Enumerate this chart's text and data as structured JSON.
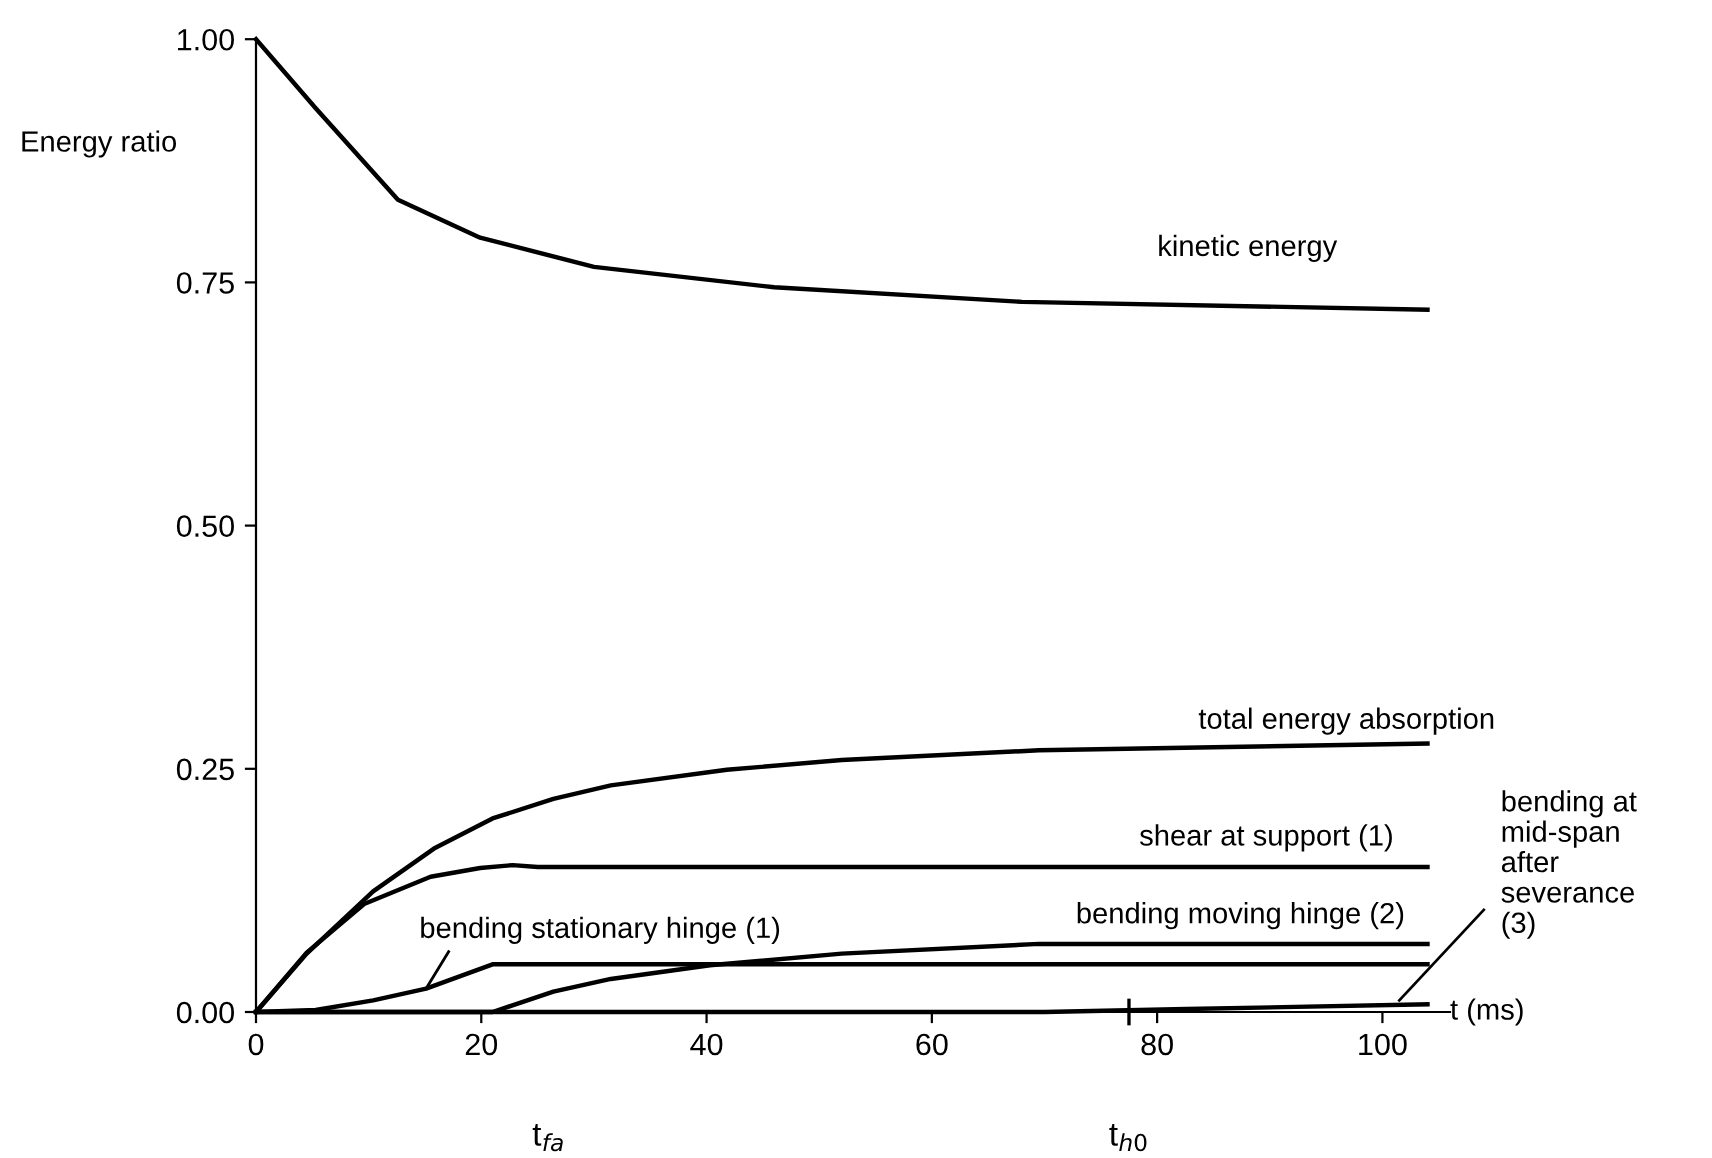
{
  "chart_data": {
    "type": "line",
    "xlabel": "t (ms)",
    "ylabel": "Energy ratio",
    "xlim": [
      0,
      106
    ],
    "ylim": [
      0,
      1.0
    ],
    "xticks": [
      0,
      20,
      40,
      60,
      80,
      100
    ],
    "yticks": [
      {
        "value": 0,
        "label": "0.00"
      },
      {
        "value": 0.25,
        "label": "0.25"
      },
      {
        "value": 0.5,
        "label": "0.50"
      },
      {
        "value": 0.75,
        "label": "0.75"
      },
      {
        "value": 1.0,
        "label": "1.00"
      }
    ],
    "grid": false,
    "legend": false,
    "marker": "none",
    "line_style": "solid",
    "series": [
      {
        "name": "kinetic energy",
        "color": "#000000",
        "x": [
          0,
          5.3,
          12.6,
          19.9,
          30,
          46,
          68,
          104
        ],
        "values": [
          1.0,
          0.929,
          0.835,
          0.796,
          0.766,
          0.745,
          0.73,
          0.722
        ]
      },
      {
        "name": "total energy absorption",
        "color": "#000000",
        "x": [
          0,
          4.5,
          10.4,
          15.8,
          21,
          26.4,
          31.5,
          41.8,
          52,
          69.5,
          104
        ],
        "values": [
          0,
          0.06,
          0.124,
          0.168,
          0.199,
          0.219,
          0.233,
          0.249,
          0.259,
          0.269,
          0.276
        ]
      },
      {
        "name": "shear at support (1)",
        "color": "#000000",
        "x": [
          0,
          4.5,
          9.6,
          15.5,
          19.9,
          22.8,
          25,
          104
        ],
        "values": [
          0,
          0.061,
          0.111,
          0.139,
          0.148,
          0.151,
          0.149,
          0.149
        ]
      },
      {
        "name": "bending stationary hinge (1)",
        "color": "#000000",
        "x": [
          0,
          5.3,
          10.4,
          15.1,
          21,
          104
        ],
        "values": [
          0,
          0.002,
          0.012,
          0.024,
          0.049,
          0.049
        ]
      },
      {
        "name": "bending moving hinge (2)",
        "color": "#000000",
        "x": [
          0,
          21,
          26.4,
          31.5,
          40.3,
          52,
          69.5,
          104
        ],
        "values": [
          0,
          0,
          0.021,
          0.034,
          0.048,
          0.06,
          0.07,
          0.07
        ]
      },
      {
        "name": "bending at\nmid-span\nafter\nseverance\n(3)",
        "color": "#000000",
        "x": [
          0,
          70,
          82.6,
          104
        ],
        "values": [
          0,
          0,
          0.003,
          0.008
        ]
      }
    ],
    "annotations": [
      "t$_{fa}$",
      "t$_{h0}$"
    ]
  }
}
